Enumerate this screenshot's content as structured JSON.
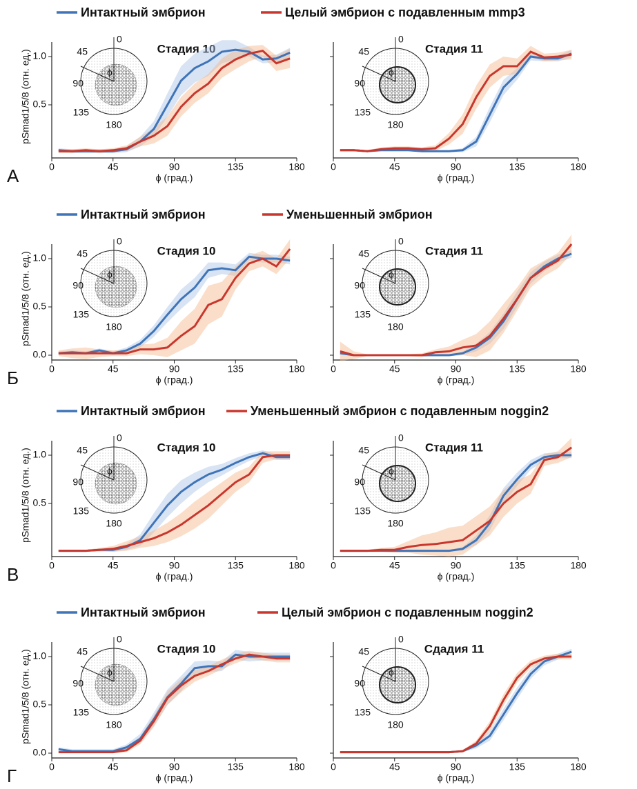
{
  "inset_angle_labels": [
    "0",
    "45",
    "90",
    "135",
    "180"
  ],
  "inset_symbol": "ϕ",
  "chart_data": [
    {
      "type": "line",
      "panel_label": "А",
      "title": "Стадия 10",
      "x_label": "ϕ (град.)",
      "y_label": "pSmad1/5/8 (отн. ед.)",
      "xlim": [
        0,
        180
      ],
      "xticks": [
        0,
        45,
        90,
        135,
        180
      ],
      "ylim": [
        -0.05,
        1.15
      ],
      "yticks": [
        0.5,
        {
          "value": 1,
          "label": "1.0"
        }
      ],
      "ytick_labels": true,
      "x": [
        5,
        15,
        25,
        35,
        45,
        55,
        65,
        75,
        85,
        95,
        105,
        115,
        125,
        135,
        145,
        155,
        165,
        175
      ],
      "series": [
        {
          "name": "Интактный эмбрион",
          "color": "#3f74b8",
          "values": [
            0.03,
            0.02,
            0.02,
            0.02,
            0.02,
            0.04,
            0.12,
            0.25,
            0.5,
            0.75,
            0.88,
            0.95,
            1.05,
            1.07,
            1.05,
            0.97,
            0.98,
            1.04
          ],
          "errors": [
            0.02,
            0.02,
            0.02,
            0.02,
            0.02,
            0.03,
            0.05,
            0.08,
            0.12,
            0.15,
            0.15,
            0.15,
            0.12,
            0.1,
            0.05,
            0.04,
            0.04,
            0.05
          ]
        },
        {
          "name": "Целый эмбрион с подавленным mmp3",
          "color": "#c8372d",
          "values": [
            0.02,
            0.02,
            0.03,
            0.02,
            0.03,
            0.05,
            0.12,
            0.18,
            0.28,
            0.48,
            0.62,
            0.72,
            0.88,
            0.97,
            1.03,
            1.06,
            0.93,
            0.98
          ],
          "errors": [
            0.02,
            0.02,
            0.02,
            0.02,
            0.02,
            0.03,
            0.05,
            0.08,
            0.1,
            0.1,
            0.1,
            0.1,
            0.1,
            0.1,
            0.08,
            0.06,
            0.08,
            0.1
          ]
        }
      ]
    },
    {
      "type": "line",
      "title": "Стадия 11",
      "x_label": "ϕ (град.)",
      "xlim": [
        0,
        180
      ],
      "xticks": [
        0,
        45,
        90,
        135,
        180
      ],
      "ylim": [
        -0.05,
        1.15
      ],
      "yticks": [
        0.5,
        1
      ],
      "ytick_labels": false,
      "x": [
        5,
        15,
        25,
        35,
        45,
        55,
        65,
        75,
        85,
        95,
        105,
        115,
        125,
        135,
        145,
        155,
        165,
        175
      ],
      "series": [
        {
          "color": "#3f74b8",
          "values": [
            0.03,
            0.03,
            0.02,
            0.03,
            0.03,
            0.03,
            0.02,
            0.02,
            0.02,
            0.03,
            0.12,
            0.4,
            0.68,
            0.82,
            1.0,
            0.98,
            0.98,
            1.03
          ],
          "errors": [
            0.01,
            0.01,
            0.01,
            0.01,
            0.01,
            0.01,
            0.01,
            0.01,
            0.01,
            0.02,
            0.05,
            0.08,
            0.08,
            0.06,
            0.04,
            0.03,
            0.03,
            0.04
          ]
        },
        {
          "color": "#c8372d",
          "values": [
            0.03,
            0.03,
            0.02,
            0.04,
            0.05,
            0.05,
            0.04,
            0.05,
            0.15,
            0.3,
            0.58,
            0.8,
            0.9,
            0.9,
            1.05,
            0.99,
            1.0,
            1.02
          ],
          "errors": [
            0.01,
            0.01,
            0.01,
            0.02,
            0.02,
            0.02,
            0.02,
            0.03,
            0.06,
            0.1,
            0.12,
            0.12,
            0.1,
            0.08,
            0.06,
            0.04,
            0.04,
            0.05
          ]
        }
      ]
    },
    {
      "type": "line",
      "panel_label": "Б",
      "title": "Стадия 10",
      "x_label": "ϕ (град.)",
      "y_label": "pSmad1/5/8 (отн. ед.)",
      "xlim": [
        0,
        180
      ],
      "xticks": [
        0,
        45,
        90,
        135,
        180
      ],
      "ylim": [
        -0.05,
        1.15
      ],
      "yticks": [
        {
          "value": 0,
          "label": "0.0"
        },
        0.5,
        {
          "value": 1,
          "label": "1.0"
        }
      ],
      "ytick_labels": true,
      "x": [
        5,
        15,
        25,
        35,
        45,
        55,
        65,
        75,
        85,
        95,
        105,
        115,
        125,
        135,
        145,
        155,
        165,
        175
      ],
      "series": [
        {
          "name": "Интактный эмбрион",
          "color": "#3f74b8",
          "values": [
            0.02,
            0.03,
            0.02,
            0.05,
            0.02,
            0.05,
            0.12,
            0.25,
            0.42,
            0.58,
            0.7,
            0.88,
            0.9,
            0.88,
            1.02,
            1.0,
            1.0,
            0.98
          ],
          "errors": [
            0.02,
            0.02,
            0.02,
            0.02,
            0.02,
            0.03,
            0.04,
            0.06,
            0.08,
            0.1,
            0.1,
            0.08,
            0.06,
            0.06,
            0.04,
            0.04,
            0.04,
            0.04
          ]
        },
        {
          "name": "Уменьшенный эмбрион",
          "color": "#c8372d",
          "values": [
            0.02,
            0.02,
            0.02,
            0.02,
            0.02,
            0.02,
            0.06,
            0.06,
            0.08,
            0.2,
            0.3,
            0.52,
            0.58,
            0.8,
            0.95,
            1.0,
            0.92,
            1.1
          ],
          "errors": [
            0.03,
            0.05,
            0.06,
            0.04,
            0.03,
            0.03,
            0.05,
            0.06,
            0.1,
            0.15,
            0.18,
            0.2,
            0.18,
            0.12,
            0.08,
            0.08,
            0.08,
            0.1
          ]
        }
      ]
    },
    {
      "type": "line",
      "title": "Стадия 11",
      "x_label": "ϕ (град.)",
      "xlim": [
        0,
        180
      ],
      "xticks": [
        0,
        45,
        90,
        135,
        180
      ],
      "ylim": [
        -0.05,
        1.15
      ],
      "yticks": [
        0,
        0.5,
        1
      ],
      "ytick_labels": false,
      "x": [
        5,
        15,
        25,
        35,
        45,
        55,
        65,
        75,
        85,
        95,
        105,
        115,
        125,
        135,
        145,
        155,
        165,
        175
      ],
      "series": [
        {
          "color": "#3f74b8",
          "values": [
            0.02,
            0,
            0,
            0,
            0,
            0,
            0,
            0,
            0,
            0.02,
            0.08,
            0.18,
            0.35,
            0.58,
            0.8,
            0.92,
            1.0,
            1.05
          ],
          "errors": [
            0.01,
            0.01,
            0.01,
            0.01,
            0.01,
            0.01,
            0.01,
            0.01,
            0.01,
            0.02,
            0.04,
            0.06,
            0.08,
            0.08,
            0.06,
            0.05,
            0.04,
            0.04
          ]
        },
        {
          "color": "#c8372d",
          "values": [
            0.04,
            0,
            0,
            0,
            0,
            0,
            0,
            0.03,
            0.04,
            0.08,
            0.1,
            0.2,
            0.38,
            0.58,
            0.8,
            0.9,
            0.98,
            1.15
          ],
          "errors": [
            0.1,
            0.04,
            0.01,
            0.01,
            0.01,
            0.01,
            0.02,
            0.03,
            0.05,
            0.08,
            0.12,
            0.15,
            0.15,
            0.12,
            0.1,
            0.08,
            0.08,
            0.1
          ]
        }
      ]
    },
    {
      "type": "line",
      "panel_label": "В",
      "title": "Стадия 10",
      "x_label": "ϕ (град.)",
      "y_label": "pSmad1/5/8 (отн. ед.)",
      "xlim": [
        0,
        180
      ],
      "xticks": [
        0,
        45,
        90,
        135,
        180
      ],
      "ylim": [
        -0.05,
        1.15
      ],
      "yticks": [
        0.5,
        {
          "value": 1,
          "label": "1.0"
        }
      ],
      "ytick_labels": true,
      "x": [
        5,
        15,
        25,
        35,
        45,
        55,
        65,
        75,
        85,
        95,
        105,
        115,
        125,
        135,
        145,
        155,
        165,
        175
      ],
      "series": [
        {
          "name": "Интактный эмбрион",
          "color": "#3f74b8",
          "values": [
            0.01,
            0.01,
            0.01,
            0.02,
            0.02,
            0.05,
            0.12,
            0.3,
            0.48,
            0.62,
            0.72,
            0.8,
            0.85,
            0.92,
            0.98,
            1.02,
            0.98,
            0.98
          ],
          "errors": [
            0.01,
            0.01,
            0.01,
            0.01,
            0.02,
            0.03,
            0.06,
            0.1,
            0.12,
            0.12,
            0.1,
            0.08,
            0.06,
            0.05,
            0.04,
            0.03,
            0.03,
            0.03
          ]
        },
        {
          "name": "Уменьшенный эмбрион с подавленным noggin2",
          "color": "#c8372d",
          "values": [
            0.01,
            0.01,
            0.01,
            0.02,
            0.03,
            0.06,
            0.1,
            0.14,
            0.2,
            0.28,
            0.38,
            0.48,
            0.6,
            0.72,
            0.8,
            0.98,
            1.0,
            1.0
          ],
          "errors": [
            0.01,
            0.01,
            0.01,
            0.02,
            0.03,
            0.05,
            0.06,
            0.08,
            0.1,
            0.12,
            0.14,
            0.14,
            0.12,
            0.1,
            0.08,
            0.06,
            0.04,
            0.04
          ]
        }
      ]
    },
    {
      "type": "line",
      "title": "Стадия 11",
      "x_label": "ϕ (град.)",
      "xlim": [
        0,
        180
      ],
      "xticks": [
        0,
        45,
        90,
        135,
        180
      ],
      "ylim": [
        -0.05,
        1.15
      ],
      "yticks": [
        0.5,
        1
      ],
      "ytick_labels": false,
      "x": [
        5,
        15,
        25,
        35,
        45,
        55,
        65,
        75,
        85,
        95,
        105,
        115,
        125,
        135,
        145,
        155,
        165,
        175
      ],
      "series": [
        {
          "color": "#3f74b8",
          "values": [
            0.01,
            0.01,
            0.01,
            0.01,
            0.01,
            0.01,
            0.01,
            0.01,
            0.01,
            0.03,
            0.12,
            0.3,
            0.58,
            0.75,
            0.9,
            0.98,
            1.0,
            1.0
          ],
          "errors": [
            0.01,
            0.01,
            0.01,
            0.01,
            0.01,
            0.01,
            0.01,
            0.01,
            0.01,
            0.02,
            0.05,
            0.08,
            0.08,
            0.07,
            0.05,
            0.04,
            0.03,
            0.03
          ]
        },
        {
          "color": "#c8372d",
          "values": [
            0.01,
            0.01,
            0.01,
            0.02,
            0.02,
            0.05,
            0.07,
            0.08,
            0.1,
            0.12,
            0.22,
            0.32,
            0.5,
            0.62,
            0.7,
            0.95,
            0.98,
            1.08
          ],
          "errors": [
            0.01,
            0.01,
            0.01,
            0.02,
            0.03,
            0.06,
            0.1,
            0.12,
            0.15,
            0.15,
            0.15,
            0.15,
            0.14,
            0.12,
            0.1,
            0.06,
            0.06,
            0.1
          ]
        }
      ]
    },
    {
      "type": "line",
      "panel_label": "Г",
      "title": "Стадия 10",
      "x_label": "ϕ (град.)",
      "y_label": "pSmad1/5/8 (отн. ед.)",
      "xlim": [
        0,
        180
      ],
      "xticks": [
        0,
        45,
        90,
        135,
        180
      ],
      "ylim": [
        -0.05,
        1.15
      ],
      "yticks": [
        {
          "value": 0,
          "label": "0.0"
        },
        0.5,
        {
          "value": 1,
          "label": "1.0"
        }
      ],
      "ytick_labels": true,
      "x": [
        5,
        15,
        25,
        35,
        45,
        55,
        65,
        75,
        85,
        95,
        105,
        115,
        125,
        135,
        145,
        155,
        165,
        175
      ],
      "series": [
        {
          "name": "Интактный эмбрион",
          "color": "#3f74b8",
          "values": [
            0.04,
            0.02,
            0.02,
            0.02,
            0.02,
            0.06,
            0.15,
            0.35,
            0.58,
            0.72,
            0.88,
            0.9,
            0.9,
            1.02,
            1.0,
            1.0,
            1.0,
            1.0
          ],
          "errors": [
            0.02,
            0.02,
            0.02,
            0.02,
            0.02,
            0.03,
            0.05,
            0.07,
            0.08,
            0.08,
            0.07,
            0.06,
            0.05,
            0.05,
            0.05,
            0.04,
            0.04,
            0.04
          ]
        },
        {
          "name": "Целый эмбрион с подавленным noggin2",
          "color": "#c8372d",
          "values": [
            0.01,
            0.01,
            0.01,
            0.01,
            0.01,
            0.03,
            0.13,
            0.33,
            0.57,
            0.7,
            0.8,
            0.85,
            0.92,
            0.98,
            1.02,
            1.0,
            0.98,
            0.98
          ],
          "errors": [
            0.01,
            0.01,
            0.01,
            0.01,
            0.01,
            0.02,
            0.04,
            0.06,
            0.07,
            0.07,
            0.06,
            0.05,
            0.05,
            0.05,
            0.04,
            0.04,
            0.04,
            0.04
          ]
        }
      ]
    },
    {
      "type": "line",
      "title": "Сдадия 11",
      "x_label": "ϕ (град.)",
      "xlim": [
        0,
        180
      ],
      "xticks": [
        0,
        45,
        90,
        135,
        180
      ],
      "ylim": [
        -0.05,
        1.15
      ],
      "yticks": [
        0,
        0.5,
        1
      ],
      "ytick_labels": false,
      "x": [
        5,
        15,
        25,
        35,
        45,
        55,
        65,
        75,
        85,
        95,
        105,
        115,
        125,
        135,
        145,
        155,
        165,
        175
      ],
      "series": [
        {
          "color": "#3f74b8",
          "values": [
            0.01,
            0.01,
            0.01,
            0.01,
            0.01,
            0.01,
            0.01,
            0.01,
            0.01,
            0.02,
            0.08,
            0.18,
            0.4,
            0.62,
            0.82,
            0.95,
            1.0,
            1.05
          ],
          "errors": [
            0.01,
            0.01,
            0.01,
            0.01,
            0.01,
            0.01,
            0.01,
            0.01,
            0.01,
            0.01,
            0.03,
            0.05,
            0.06,
            0.06,
            0.05,
            0.04,
            0.03,
            0.03
          ]
        },
        {
          "color": "#c8372d",
          "values": [
            0.01,
            0.01,
            0.01,
            0.01,
            0.01,
            0.01,
            0.01,
            0.01,
            0.01,
            0.02,
            0.1,
            0.28,
            0.55,
            0.78,
            0.92,
            0.98,
            1.0,
            1.0
          ],
          "errors": [
            0.01,
            0.01,
            0.01,
            0.01,
            0.01,
            0.01,
            0.01,
            0.01,
            0.01,
            0.01,
            0.03,
            0.05,
            0.06,
            0.05,
            0.04,
            0.03,
            0.03,
            0.03
          ]
        }
      ]
    }
  ]
}
